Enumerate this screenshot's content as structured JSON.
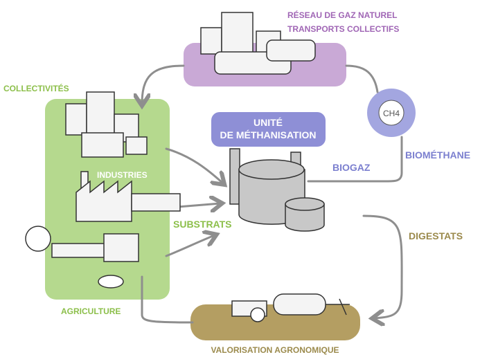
{
  "network": {
    "line1": "RÉSEAU DE GAZ NATUREL",
    "line2": "TRANSPORTS COLLECTIFS"
  },
  "sources": {
    "collectivites": "COLLECTIVITÉS",
    "industries": "INDUSTRIES",
    "agriculture": "AGRICULTURE"
  },
  "flows": {
    "substrats": "SUBSTRATS",
    "biogaz": "BIOGAZ",
    "biomethane": "BIOMÉTHANE",
    "digestats": "DIGESTATS"
  },
  "unit": {
    "line1": "UNITÉ",
    "line2": "DE MÉTHANISATION"
  },
  "gas": {
    "formula": "CH4"
  },
  "output": {
    "label": "VALORISATION AGRONOMIQUE"
  }
}
